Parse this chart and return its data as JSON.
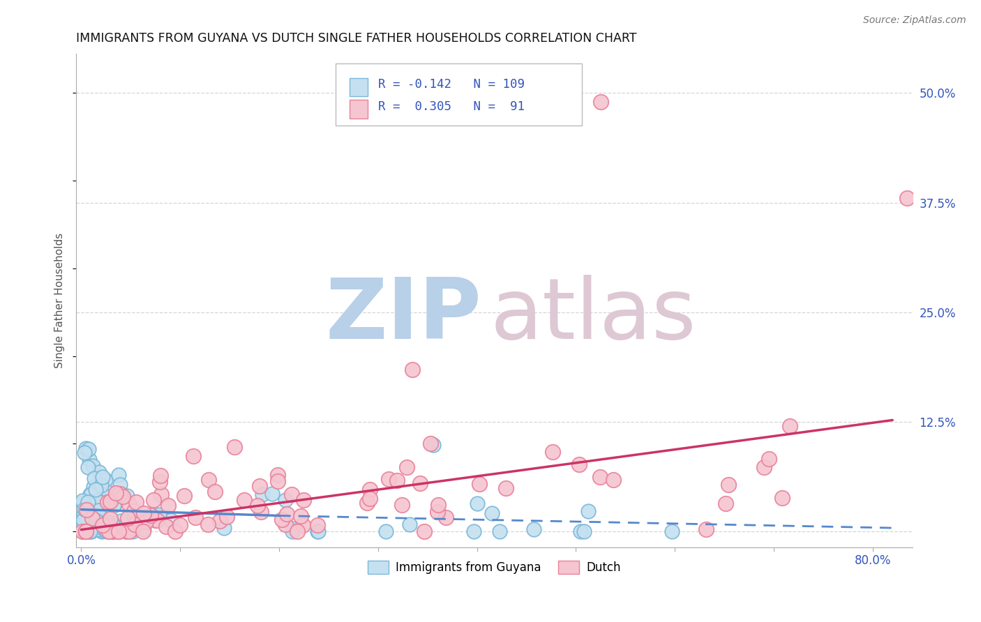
{
  "title": "IMMIGRANTS FROM GUYANA VS DUTCH SINGLE FATHER HOUSEHOLDS CORRELATION CHART",
  "source": "Source: ZipAtlas.com",
  "ylabel": "Single Father Households",
  "x_ticks": [
    0.0,
    0.1,
    0.2,
    0.3,
    0.4,
    0.5,
    0.6,
    0.7,
    0.8
  ],
  "y_ticks": [
    0.0,
    0.125,
    0.25,
    0.375,
    0.5
  ],
  "y_tick_labels": [
    "",
    "12.5%",
    "25.0%",
    "37.5%",
    "50.0%"
  ],
  "xlim": [
    -0.005,
    0.84
  ],
  "ylim": [
    -0.018,
    0.545
  ],
  "blue_R": -0.142,
  "blue_N": 109,
  "pink_R": 0.305,
  "pink_N": 91,
  "blue_edge_color": "#7ab8d9",
  "blue_face_color": "#c5e0f0",
  "pink_edge_color": "#e8829a",
  "pink_face_color": "#f5c5d0",
  "blue_line_color": "#5588cc",
  "pink_line_color": "#cc3366",
  "title_fontsize": 12.5,
  "source_fontsize": 10,
  "axis_label_fontsize": 11,
  "tick_fontsize": 12,
  "background_color": "#ffffff",
  "grid_color": "#cccccc"
}
